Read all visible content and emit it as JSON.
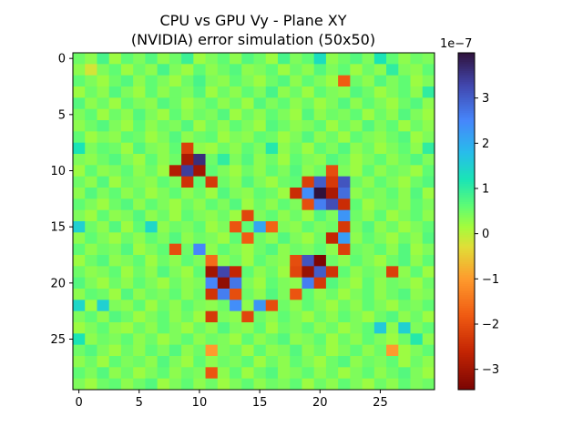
{
  "chart_data": {
    "type": "heatmap",
    "title_line1": "CPU vs GPU Vy - Plane XY",
    "title_line2": "(NVIDIA) error simulation (50x50)",
    "xlabel": "",
    "ylabel": "",
    "rows": 30,
    "cols": 30,
    "x_ticks": [
      0,
      5,
      10,
      15,
      20,
      25
    ],
    "y_ticks": [
      0,
      5,
      10,
      15,
      20,
      25
    ],
    "x_tick_labels": [
      "0",
      "5",
      "10",
      "15",
      "20",
      "25"
    ],
    "y_tick_labels": [
      "0",
      "5",
      "10",
      "15",
      "20",
      "25"
    ],
    "colorbar": {
      "vmin": -3.45,
      "vmax": 4.0,
      "ticks": [
        3,
        2,
        1,
        0,
        -1,
        -2,
        -3
      ],
      "tick_labels": [
        "3",
        "2",
        "1",
        "0",
        "−1",
        "−2",
        "−3"
      ],
      "offset_label": "1e−7"
    },
    "colormap": [
      "#7a0403",
      "#c42503",
      "#f05b12",
      "#fe9b2d",
      "#e1dd37",
      "#a4fc3c",
      "#5ffc73",
      "#1ae4b6",
      "#28bceb",
      "#4686fb",
      "#4145ab",
      "#30123b"
    ],
    "colormap_stops": [
      -3.45,
      -2.6,
      -1.8,
      -1.0,
      -0.3,
      0.15,
      0.6,
      1.2,
      1.8,
      2.5,
      3.3,
      4.0
    ],
    "values": [
      [
        0.5,
        0.3,
        0.8,
        0.2,
        0.6,
        0.4,
        0.7,
        0.3,
        0.5,
        0.9,
        0.2,
        0.4,
        0.6,
        0.3,
        0.7,
        0.5,
        0.2,
        0.8,
        0.4,
        0.6,
        1.3,
        0.3,
        0.5,
        0.7,
        0.4,
        1.2,
        0.6,
        0.3,
        0.5,
        0.4
      ],
      [
        0.3,
        -0.2,
        0.4,
        0.6,
        0.2,
        0.5,
        0.3,
        0.8,
        0.4,
        0.2,
        0.6,
        0.3,
        0.5,
        0.7,
        0.3,
        0.4,
        0.6,
        0.2,
        0.5,
        0.3,
        0.7,
        0.4,
        0.6,
        0.2,
        0.5,
        0.3,
        1.0,
        0.4,
        0.3,
        0.6
      ],
      [
        0.6,
        0.4,
        0.2,
        0.5,
        0.7,
        0.3,
        0.6,
        0.4,
        0.2,
        0.5,
        0.8,
        0.4,
        0.3,
        0.6,
        0.4,
        0.2,
        0.5,
        0.7,
        0.3,
        0.6,
        0.4,
        0.2,
        -1.8,
        0.5,
        0.3,
        0.7,
        0.4,
        0.6,
        0.2,
        0.4
      ],
      [
        0.2,
        0.5,
        0.3,
        0.7,
        0.4,
        0.2,
        0.6,
        0.3,
        0.5,
        0.4,
        0.7,
        0.2,
        0.5,
        0.3,
        0.6,
        0.4,
        0.8,
        0.3,
        0.5,
        0.2,
        0.6,
        0.4,
        0.3,
        0.7,
        0.5,
        0.2,
        0.4,
        0.6,
        0.3,
        1.0
      ],
      [
        0.7,
        0.3,
        0.5,
        0.2,
        0.6,
        0.4,
        0.3,
        0.7,
        0.5,
        0.2,
        0.4,
        0.6,
        0.3,
        0.5,
        0.2,
        0.7,
        0.4,
        0.6,
        0.3,
        0.5,
        0.2,
        0.4,
        0.7,
        0.3,
        0.6,
        0.4,
        0.2,
        0.5,
        0.7,
        0.3
      ],
      [
        0.4,
        0.6,
        0.2,
        0.5,
        0.3,
        0.7,
        0.4,
        0.2,
        0.6,
        0.3,
        0.5,
        0.4,
        0.7,
        0.2,
        0.5,
        0.3,
        0.6,
        0.4,
        0.2,
        0.7,
        0.3,
        0.5,
        0.4,
        0.6,
        0.2,
        0.5,
        0.3,
        0.7,
        0.4,
        0.2
      ],
      [
        0.3,
        0.5,
        0.7,
        0.4,
        0.2,
        0.6,
        0.3,
        0.5,
        0.4,
        0.7,
        0.2,
        0.5,
        0.3,
        0.6,
        0.4,
        0.2,
        0.7,
        0.5,
        0.3,
        0.4,
        0.6,
        0.2,
        0.5,
        0.3,
        0.7,
        0.4,
        0.6,
        0.2,
        0.5,
        0.3
      ],
      [
        0.6,
        0.2,
        0.4,
        0.3,
        0.6,
        0.5,
        0.2,
        0.4,
        0.7,
        0.3,
        0.5,
        0.6,
        0.2,
        0.4,
        0.3,
        0.6,
        0.5,
        0.2,
        0.4,
        0.7,
        0.3,
        0.5,
        0.2,
        0.6,
        0.4,
        0.3,
        0.5,
        0.7,
        0.2,
        0.4
      ],
      [
        1.2,
        0.4,
        0.6,
        0.5,
        0.2,
        0.7,
        0.4,
        0.3,
        0.6,
        -2.2,
        0.3,
        0.2,
        0.5,
        0.3,
        0.6,
        0.4,
        1.1,
        0.3,
        0.5,
        0.2,
        0.6,
        0.4,
        0.7,
        0.3,
        0.5,
        0.2,
        0.4,
        0.6,
        0.3,
        1.0
      ],
      [
        0.4,
        0.3,
        0.5,
        0.7,
        0.4,
        0.2,
        0.6,
        0.3,
        0.5,
        -2.9,
        3.6,
        0.5,
        1.0,
        0.4,
        0.7,
        0.3,
        0.5,
        0.2,
        0.6,
        0.4,
        0.3,
        0.7,
        0.5,
        0.2,
        0.4,
        0.6,
        0.3,
        0.5,
        0.7,
        0.4
      ],
      [
        0.2,
        0.6,
        0.3,
        0.4,
        0.6,
        0.3,
        0.5,
        0.2,
        -2.8,
        3.4,
        -3.0,
        0.6,
        0.4,
        0.2,
        0.5,
        0.3,
        0.6,
        0.4,
        0.7,
        0.3,
        0.5,
        -2.0,
        0.4,
        0.2,
        0.6,
        0.3,
        0.5,
        0.4,
        0.2,
        0.6
      ],
      [
        0.5,
        0.3,
        0.7,
        0.2,
        0.5,
        0.4,
        0.3,
        0.6,
        0.4,
        -2.4,
        0.6,
        -2.3,
        0.5,
        0.3,
        0.7,
        0.4,
        0.2,
        0.5,
        0.6,
        -2.2,
        3.0,
        -2.3,
        3.1,
        0.5,
        0.3,
        0.6,
        0.4,
        0.2,
        0.5,
        0.7
      ],
      [
        0.3,
        0.7,
        0.4,
        0.6,
        0.3,
        0.5,
        0.2,
        0.4,
        0.6,
        0.3,
        0.5,
        0.2,
        0.7,
        0.4,
        0.3,
        0.6,
        0.5,
        0.2,
        -2.5,
        2.4,
        4.0,
        -2.9,
        2.8,
        0.3,
        0.5,
        0.4,
        0.6,
        0.3,
        0.7,
        0.2
      ],
      [
        0.6,
        0.4,
        0.2,
        0.5,
        0.7,
        0.3,
        0.6,
        0.4,
        0.2,
        0.5,
        0.3,
        0.6,
        0.4,
        0.7,
        0.2,
        0.5,
        0.3,
        0.6,
        0.4,
        -2.0,
        2.6,
        3.2,
        -2.5,
        0.6,
        0.2,
        0.4,
        0.5,
        0.3,
        0.6,
        0.4
      ],
      [
        0.4,
        0.2,
        0.6,
        0.3,
        0.4,
        0.7,
        0.3,
        0.5,
        0.2,
        0.6,
        0.4,
        0.3,
        0.5,
        0.2,
        -2.1,
        0.4,
        0.6,
        0.3,
        0.5,
        0.2,
        0.7,
        0.4,
        2.3,
        0.5,
        0.3,
        0.6,
        0.2,
        0.4,
        0.6,
        0.3
      ],
      [
        1.5,
        0.5,
        0.3,
        0.7,
        0.2,
        0.6,
        1.4,
        0.3,
        0.5,
        0.4,
        0.6,
        0.2,
        0.4,
        -1.9,
        0.6,
        2.1,
        -1.7,
        0.4,
        0.3,
        0.6,
        0.4,
        0.5,
        -2.3,
        0.4,
        0.7,
        0.3,
        0.5,
        0.2,
        0.4,
        0.6
      ],
      [
        0.3,
        0.6,
        0.4,
        0.2,
        0.5,
        0.3,
        0.6,
        0.4,
        0.7,
        0.3,
        0.5,
        0.4,
        0.2,
        0.6,
        -1.8,
        0.5,
        0.3,
        0.7,
        0.4,
        0.2,
        0.5,
        -2.6,
        2.2,
        0.3,
        0.6,
        0.4,
        0.2,
        0.5,
        0.3,
        0.7
      ],
      [
        0.6,
        0.3,
        0.5,
        0.4,
        0.7,
        0.2,
        0.4,
        0.6,
        -2.0,
        0.5,
        2.5,
        0.3,
        0.6,
        0.4,
        0.2,
        0.5,
        0.7,
        0.3,
        0.5,
        0.4,
        0.6,
        0.3,
        -2.2,
        0.5,
        0.4,
        0.6,
        0.3,
        0.7,
        0.2,
        0.4
      ],
      [
        0.2,
        0.5,
        0.7,
        0.3,
        0.4,
        0.6,
        0.2,
        0.5,
        0.3,
        0.6,
        0.4,
        -1.6,
        0.3,
        0.5,
        0.2,
        0.6,
        0.4,
        0.3,
        -2.0,
        3.1,
        -3.4,
        0.5,
        0.3,
        0.6,
        0.4,
        0.2,
        0.5,
        0.7,
        0.3,
        0.6
      ],
      [
        0.5,
        0.3,
        0.4,
        0.6,
        0.2,
        0.5,
        0.3,
        0.7,
        0.4,
        0.2,
        0.6,
        -3.0,
        3.3,
        -2.6,
        0.6,
        0.3,
        0.5,
        0.2,
        -2.1,
        -3.1,
        3.0,
        -2.4,
        0.6,
        0.3,
        0.5,
        0.4,
        -2.2,
        0.3,
        0.6,
        0.2
      ],
      [
        0.7,
        0.4,
        0.2,
        0.5,
        0.3,
        0.6,
        0.4,
        0.2,
        0.5,
        0.3,
        0.4,
        2.5,
        -3.2,
        2.7,
        0.4,
        0.2,
        0.6,
        0.4,
        0.3,
        2.6,
        -2.3,
        0.7,
        0.4,
        0.2,
        0.6,
        0.3,
        0.5,
        0.4,
        0.2,
        0.5
      ],
      [
        0.3,
        0.6,
        0.5,
        0.2,
        0.7,
        0.3,
        0.5,
        0.4,
        0.6,
        0.3,
        0.5,
        -2.4,
        2.6,
        -2.0,
        0.5,
        0.3,
        0.7,
        0.4,
        -1.9,
        0.6,
        0.3,
        0.5,
        0.2,
        0.4,
        0.6,
        0.3,
        0.5,
        0.7,
        0.3,
        0.4
      ],
      [
        1.4,
        0.2,
        1.5,
        0.4,
        0.3,
        0.6,
        0.2,
        0.5,
        0.3,
        0.6,
        0.4,
        0.3,
        0.5,
        2.4,
        0.3,
        2.3,
        -2.0,
        0.5,
        0.3,
        0.6,
        0.4,
        0.2,
        0.5,
        0.3,
        0.6,
        0.4,
        0.2,
        0.5,
        0.4,
        0.6
      ],
      [
        0.4,
        0.6,
        0.3,
        0.7,
        0.5,
        0.2,
        0.4,
        0.6,
        0.3,
        0.5,
        0.2,
        -2.3,
        0.4,
        0.3,
        -2.1,
        0.5,
        0.3,
        0.6,
        0.4,
        0.2,
        0.5,
        0.3,
        0.6,
        0.4,
        0.2,
        0.5,
        0.7,
        0.3,
        0.5,
        0.2
      ],
      [
        0.2,
        0.4,
        0.6,
        0.3,
        0.2,
        0.5,
        0.3,
        0.6,
        0.4,
        0.2,
        0.5,
        0.3,
        0.7,
        0.4,
        0.3,
        0.6,
        0.2,
        0.5,
        0.4,
        0.6,
        0.3,
        0.5,
        0.2,
        0.4,
        0.6,
        1.6,
        0.3,
        1.5,
        0.4,
        0.6
      ],
      [
        1.2,
        0.3,
        0.5,
        0.4,
        0.6,
        0.3,
        0.5,
        0.2,
        0.4,
        0.6,
        0.3,
        0.5,
        0.4,
        0.2,
        0.6,
        0.3,
        0.5,
        0.7,
        0.3,
        0.4,
        0.6,
        0.2,
        0.5,
        0.3,
        0.6,
        0.4,
        0.2,
        0.5,
        1.1,
        0.3
      ],
      [
        0.5,
        0.7,
        0.4,
        0.2,
        0.5,
        0.3,
        0.6,
        0.4,
        0.7,
        0.3,
        0.5,
        -1.0,
        0.4,
        0.5,
        0.2,
        0.6,
        0.3,
        0.4,
        0.7,
        0.3,
        0.5,
        0.2,
        0.4,
        0.6,
        0.3,
        0.5,
        -1.0,
        0.2,
        0.4,
        0.6
      ],
      [
        0.3,
        0.5,
        0.2,
        0.6,
        0.4,
        0.5,
        0.3,
        0.7,
        0.4,
        0.2,
        0.6,
        0.3,
        0.5,
        0.4,
        0.6,
        0.2,
        0.5,
        0.3,
        0.6,
        0.4,
        0.2,
        0.5,
        0.7,
        0.3,
        0.5,
        0.4,
        0.6,
        0.2,
        0.5,
        0.3
      ],
      [
        0.6,
        0.4,
        0.7,
        0.3,
        0.5,
        0.2,
        0.4,
        0.6,
        0.3,
        0.5,
        0.4,
        -1.9,
        0.3,
        0.6,
        0.2,
        0.5,
        0.7,
        0.3,
        0.4,
        0.6,
        0.3,
        0.5,
        0.2,
        0.4,
        0.6,
        0.3,
        0.5,
        0.7,
        0.4,
        0.2
      ],
      [
        0.4,
        0.2,
        0.5,
        0.6,
        0.3,
        0.5,
        0.7,
        0.2,
        0.4,
        0.6,
        0.3,
        0.5,
        0.2,
        0.4,
        0.6,
        0.3,
        0.5,
        0.4,
        0.6,
        0.2,
        0.5,
        0.3,
        0.6,
        0.4,
        0.2,
        0.5,
        0.3,
        0.6,
        0.4,
        0.5
      ]
    ]
  }
}
